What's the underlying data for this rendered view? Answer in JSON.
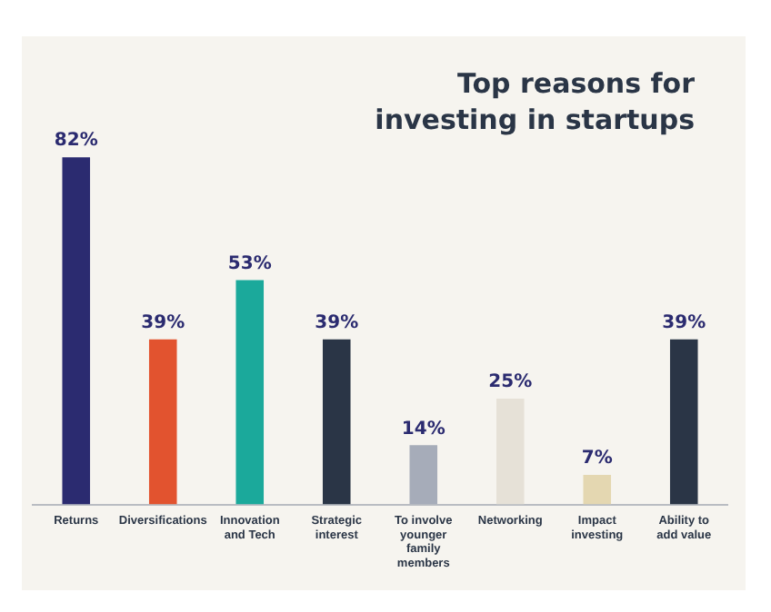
{
  "chart_data": {
    "type": "bar",
    "title": "Top reasons for investing in startups",
    "categories": [
      "Returns",
      "Diversifications",
      "Innovation and Tech",
      "Strategic interest",
      "To involve younger family members",
      "Networking",
      "Impact investing",
      "Ability to add value"
    ],
    "values": [
      82,
      39,
      53,
      39,
      14,
      25,
      7,
      39
    ],
    "colors": [
      "#2b2b70",
      "#e2532f",
      "#1ba99b",
      "#2a3546",
      "#a6acb9",
      "#e6e1d7",
      "#e4d7b1",
      "#2a3546"
    ],
    "value_labels": [
      "82%",
      "39%",
      "53%",
      "39%",
      "14%",
      "25%",
      "7%",
      "39%"
    ],
    "grid": false,
    "legend": false
  }
}
